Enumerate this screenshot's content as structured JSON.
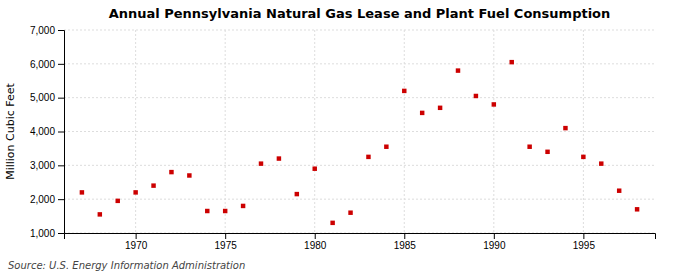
{
  "chart_data": {
    "type": "scatter",
    "title": "Annual Pennsylvania Natural Gas Lease and Plant Fuel Consumption",
    "ylabel": "Million Cubic Feet",
    "annotations": [
      "Source: U.S. Energy Information Administration"
    ],
    "x": [
      1967,
      1968,
      1969,
      1970,
      1971,
      1972,
      1973,
      1974,
      1975,
      1976,
      1977,
      1978,
      1979,
      1980,
      1981,
      1982,
      1983,
      1984,
      1985,
      1986,
      1987,
      1988,
      1989,
      1990,
      1991,
      1992,
      1993,
      1994,
      1995,
      1996,
      1997,
      1998
    ],
    "values": [
      2200,
      1550,
      1950,
      2200,
      2400,
      2800,
      2700,
      1650,
      1650,
      1800,
      3050,
      3200,
      2150,
      2900,
      1300,
      1600,
      3250,
      3550,
      5200,
      4550,
      4700,
      5800,
      5050,
      4800,
      6050,
      3550,
      3400,
      4100,
      3250,
      3050,
      2250,
      1700
    ],
    "color": "#cc0000",
    "marker": "square",
    "xlim": [
      1966,
      1999
    ],
    "ylim": [
      1000,
      7000
    ],
    "xticks": [
      1970,
      1975,
      1980,
      1985,
      1990,
      1995
    ],
    "yticks": [
      {
        "value": 1000,
        "label": "1,000"
      },
      {
        "value": 2000,
        "label": "2,000"
      },
      {
        "value": 3000,
        "label": "3,000"
      },
      {
        "value": 4000,
        "label": "4,000"
      },
      {
        "value": 5000,
        "label": "5,000"
      },
      {
        "value": 6000,
        "label": "6,000"
      },
      {
        "value": 7000,
        "label": "7,000"
      }
    ],
    "grid": true
  }
}
